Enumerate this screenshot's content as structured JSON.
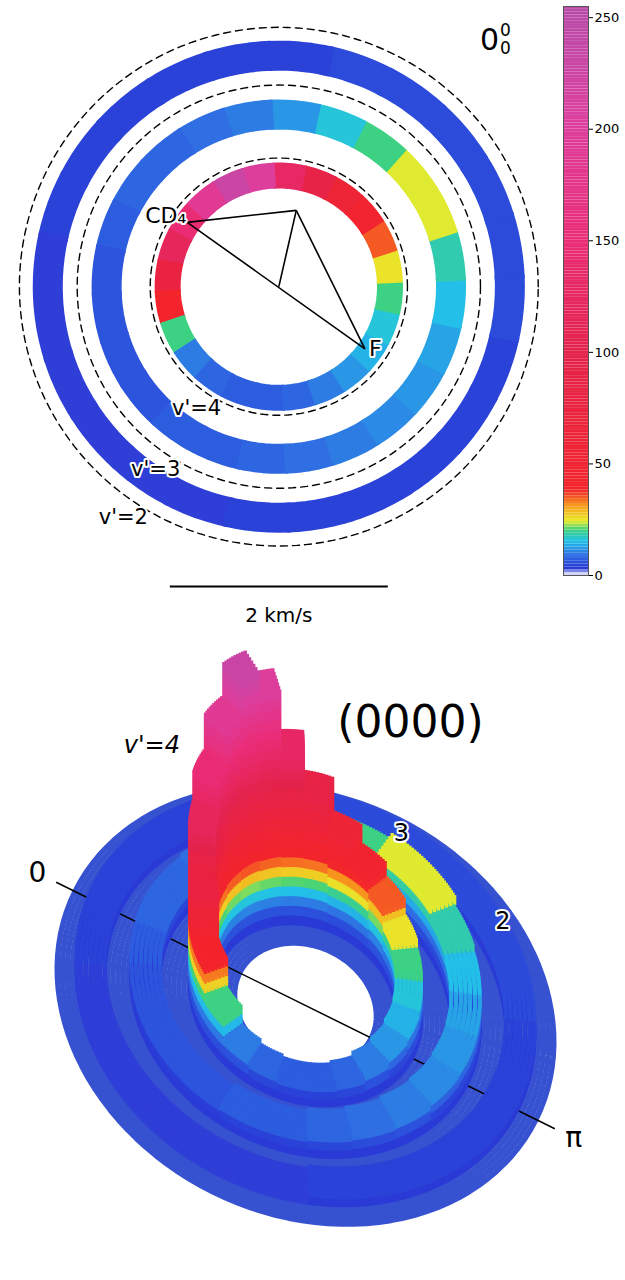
{
  "chart_data": {
    "type": "velocity_map",
    "tick_labels": false,
    "xlim": [
      -2.5,
      2.5
    ],
    "ylim": [
      -3.4,
      2.5
    ],
    "panel_label": {
      "base": "0",
      "sup": "0",
      "sub": "0"
    },
    "angles_deg": [
      0,
      15,
      30,
      45,
      60,
      75,
      90,
      105,
      120,
      135,
      150,
      165,
      180,
      195,
      210,
      225,
      240,
      255,
      270,
      285,
      300,
      315,
      330,
      345
    ],
    "rings": [
      {
        "speed": 1.02,
        "intensity": [
          150,
          120,
          80,
          40,
          20,
          10,
          8,
          7,
          7,
          8,
          10,
          12,
          14,
          16,
          20,
          25,
          35,
          45,
          60,
          90,
          130,
          200,
          230,
          190
        ]
      },
      {
        "speed": 1.58,
        "intensity": [
          8,
          7,
          6,
          6,
          6,
          6,
          7,
          7,
          8,
          9,
          10,
          11,
          12,
          13,
          15,
          18,
          24,
          24,
          20,
          16,
          12,
          10,
          9,
          8
        ]
      },
      {
        "speed": 2.12,
        "intensity": [
          4,
          4,
          3,
          3,
          3,
          3,
          3,
          3,
          4,
          4,
          4,
          4,
          4,
          4,
          5,
          5,
          5,
          5,
          5,
          5,
          4,
          4,
          4,
          4
        ]
      }
    ],
    "circles": [
      {
        "label": "v'=4",
        "speed": 1.18,
        "line_style": "dashed"
      },
      {
        "label": "v'=3",
        "speed": 1.85,
        "line_style": "dashed"
      },
      {
        "label": "v'=2",
        "speed": 2.38,
        "line_style": "dashed"
      }
    ],
    "newton_diagram": {
      "origin": [
        0.14,
        0.62
      ],
      "CD4": {
        "label": "CD₄",
        "position": [
          -0.86,
          0.51
        ]
      },
      "F": {
        "label": "F",
        "position": [
          0.77,
          -0.65
        ]
      },
      "cm": [
        -0.02,
        -0.08
      ]
    },
    "scale_bar": {
      "value": 2,
      "label": "2 km/s"
    },
    "colorbar": {
      "range": [
        0,
        255
      ],
      "ticks": [
        0,
        50,
        100,
        150,
        200,
        250
      ]
    },
    "surface": {
      "title": "(0000)",
      "ring_labels": [
        "v'=4",
        "3",
        "2"
      ],
      "angle_labels": [
        "0",
        "π"
      ]
    }
  }
}
